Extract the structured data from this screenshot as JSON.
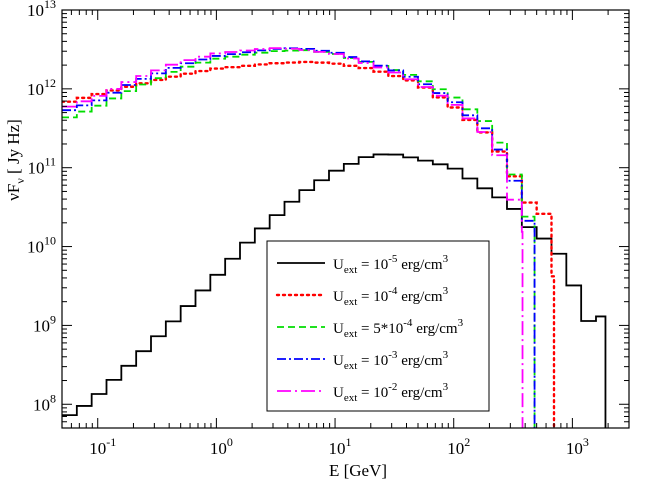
{
  "chart_data": {
    "type": "line",
    "title": "",
    "xlabel": "E [GeV]",
    "ylabel": "νFν [ Jy Hz]",
    "xscale": "log",
    "yscale": "log",
    "xlim": [
      0.05,
      3000
    ],
    "ylim": [
      50000000.0,
      10000000000000.0
    ],
    "xticks": [
      {
        "value": 0.1,
        "base": "10",
        "exp": "-1"
      },
      {
        "value": 1,
        "base": "10",
        "exp": "0"
      },
      {
        "value": 10,
        "base": "10",
        "exp": "1"
      },
      {
        "value": 100,
        "base": "10",
        "exp": "2"
      },
      {
        "value": 1000,
        "base": "10",
        "exp": "3"
      }
    ],
    "yticks": [
      {
        "value": 100000000.0,
        "base": "10",
        "exp": "8"
      },
      {
        "value": 1000000000.0,
        "base": "10",
        "exp": "9"
      },
      {
        "value": 10000000000.0,
        "base": "10",
        "exp": "10"
      },
      {
        "value": 100000000000.0,
        "base": "10",
        "exp": "11"
      },
      {
        "value": 1000000000000.0,
        "base": "10",
        "exp": "12"
      },
      {
        "value": 10000000000000.0,
        "base": "10",
        "exp": "13"
      }
    ],
    "legend_position": "bottom-center",
    "series": [
      {
        "name": "U_ext = 10^-5 erg/cm^3",
        "legend": {
          "pre": "U",
          "sub": "ext",
          "mid": " = 10",
          "sup": "-5",
          "post": " erg/cm",
          "unitsup": "3"
        },
        "color": "#000000",
        "dash": "",
        "step": true,
        "drop_to_floor": true,
        "points": [
          [
            0.05,
            65000000.0
          ],
          [
            0.07,
            85000000.0
          ],
          [
            0.1,
            130000000.0
          ],
          [
            0.2,
            350000000.0
          ],
          [
            0.5,
            1400000000.0
          ],
          [
            1,
            4200000000.0
          ],
          [
            2,
            13000000000.0
          ],
          [
            5,
            45000000000.0
          ],
          [
            10,
            90000000000.0
          ],
          [
            20,
            145000000000.0
          ],
          [
            30,
            150000000000.0
          ],
          [
            50,
            130000000000.0
          ],
          [
            100,
            100000000000.0
          ],
          [
            200,
            50000000000.0
          ],
          [
            300,
            35000000000.0
          ],
          [
            400,
            20000000000.0
          ],
          [
            500,
            14000000000.0
          ],
          [
            700,
            11000000000.0
          ],
          [
            1000,
            3500000000.0
          ],
          [
            1300,
            1500000000.0
          ],
          [
            1500,
            700000000.0
          ],
          [
            1700,
            1300000000.0
          ],
          [
            1900,
            1300000000.0
          ]
        ]
      },
      {
        "name": "U_ext = 10^-4 erg/cm^3",
        "legend": {
          "pre": "U",
          "sub": "ext",
          "mid": " = 10",
          "sup": "-4",
          "post": " erg/cm",
          "unitsup": "3"
        },
        "color": "#ff0000",
        "dash": "2,4",
        "step": true,
        "drop_to_floor": true,
        "points": [
          [
            0.05,
            650000000000.0
          ],
          [
            0.1,
            850000000000.0
          ],
          [
            0.2,
            1100000000000.0
          ],
          [
            0.5,
            1500000000000.0
          ],
          [
            1,
            1800000000000.0
          ],
          [
            3,
            2100000000000.0
          ],
          [
            6,
            2200000000000.0
          ],
          [
            10,
            2100000000000.0
          ],
          [
            20,
            1800000000000.0
          ],
          [
            50,
            1200000000000.0
          ],
          [
            100,
            600000000000.0
          ],
          [
            200,
            250000000000.0
          ],
          [
            300,
            100000000000.0
          ],
          [
            400,
            40000000000.0
          ],
          [
            500,
            30000000000.0
          ],
          [
            600,
            25000000000.0
          ],
          [
            700,
            3000000000.0
          ]
        ]
      },
      {
        "name": "U_ext = 5*10^-4 erg/cm^3",
        "legend": {
          "pre": "U",
          "sub": "ext",
          "mid": " = 5*10",
          "sup": "-4",
          "post": " erg/cm",
          "unitsup": "3"
        },
        "color": "#00dd00",
        "dash": "7,4",
        "step": true,
        "drop_to_floor": true,
        "points": [
          [
            0.05,
            400000000000.0
          ],
          [
            0.1,
            600000000000.0
          ],
          [
            0.2,
            1000000000000.0
          ],
          [
            0.5,
            1800000000000.0
          ],
          [
            1,
            2400000000000.0
          ],
          [
            3,
            3000000000000.0
          ],
          [
            6,
            3100000000000.0
          ],
          [
            10,
            2800000000000.0
          ],
          [
            30,
            1800000000000.0
          ],
          [
            50,
            1400000000000.0
          ],
          [
            100,
            800000000000.0
          ],
          [
            200,
            350000000000.0
          ],
          [
            300,
            120000000000.0
          ],
          [
            400,
            30000000000.0
          ],
          [
            480,
            15000000000.0
          ]
        ]
      },
      {
        "name": "U_ext = 10^-3 erg/cm^3",
        "legend": {
          "pre": "U",
          "sub": "ext",
          "mid": " = 10",
          "sup": "-3",
          "post": " erg/cm",
          "unitsup": "3"
        },
        "color": "#0000ff",
        "dash": "9,3,2,3",
        "step": true,
        "drop_to_floor": true,
        "points": [
          [
            0.05,
            500000000000.0
          ],
          [
            0.1,
            700000000000.0
          ],
          [
            0.2,
            1200000000000.0
          ],
          [
            0.5,
            2000000000000.0
          ],
          [
            1,
            2600000000000.0
          ],
          [
            3,
            3200000000000.0
          ],
          [
            5,
            3300000000000.0
          ],
          [
            10,
            2900000000000.0
          ],
          [
            30,
            1800000000000.0
          ],
          [
            50,
            1300000000000.0
          ],
          [
            100,
            700000000000.0
          ],
          [
            200,
            280000000000.0
          ],
          [
            300,
            100000000000.0
          ],
          [
            400,
            25000000000.0
          ],
          [
            480,
            15000000000.0
          ]
        ]
      },
      {
        "name": "U_ext = 10^-2 erg/cm^3",
        "legend": {
          "pre": "U",
          "sub": "ext",
          "mid": " = 10",
          "sup": "-2",
          "post": " erg/cm",
          "unitsup": "3"
        },
        "color": "#ff00ff",
        "dash": "14,4,2,4",
        "step": true,
        "drop_to_floor": true,
        "points": [
          [
            0.05,
            550000000000.0
          ],
          [
            0.1,
            800000000000.0
          ],
          [
            0.2,
            1300000000000.0
          ],
          [
            0.5,
            2200000000000.0
          ],
          [
            1,
            2800000000000.0
          ],
          [
            3,
            3300000000000.0
          ],
          [
            5,
            3200000000000.0
          ],
          [
            10,
            2800000000000.0
          ],
          [
            30,
            1700000000000.0
          ],
          [
            50,
            1200000000000.0
          ],
          [
            100,
            650000000000.0
          ],
          [
            200,
            250000000000.0
          ],
          [
            300,
            80000000000.0
          ],
          [
            350,
            20000000000.0
          ],
          [
            380,
            15000000000.0
          ]
        ]
      }
    ]
  }
}
